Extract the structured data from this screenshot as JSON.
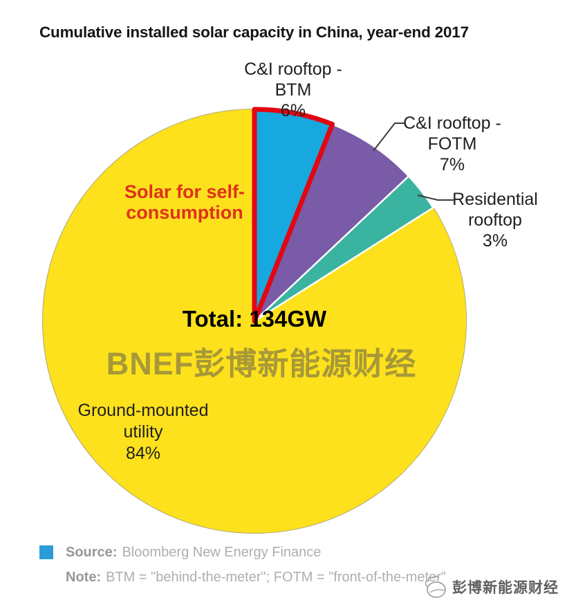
{
  "title": "Cumulative installed solar capacity in China, year-end 2017",
  "chart_data": {
    "type": "pie",
    "title": "Cumulative installed solar capacity in China, year-end 2017",
    "total_label": "Total: 134GW",
    "total_value_gw": 134,
    "start_angle_deg": 0,
    "direction": "clockwise",
    "slices": [
      {
        "label": "C&I rooftop - BTM",
        "pct": 6,
        "color": "#17a8e0",
        "display": "C&I rooftop -\nBTM\n6%"
      },
      {
        "label": "C&I rooftop - FOTM",
        "pct": 7,
        "color": "#7a5ba8",
        "display": "C&I rooftop -\nFOTM\n7%"
      },
      {
        "label": "Residential rooftop",
        "pct": 3,
        "color": "#3bb3a1",
        "display": "Residential\nrooftop\n3%"
      },
      {
        "label": "Ground-mounted utility",
        "pct": 84,
        "color": "#fce11c",
        "display": "Ground-mounted\nutility\n84%"
      }
    ],
    "annotation": {
      "text": "Solar for self-\nconsumption",
      "color": "#e1301c",
      "outline_color": "#e30613"
    },
    "watermark_center": "BNEF彭博新能源财经"
  },
  "footer": {
    "legend_color": "#2b9cd8",
    "source_label": "Source:",
    "source_text": "Bloomberg New Energy Finance",
    "note_label": "Note:",
    "note_text": "BTM = \"behind-the-meter\"; FOTM = \"front-of-the-meter\""
  },
  "corner_watermark": {
    "text": "彭博新能源财经",
    "icon": "sketch-globe-icon"
  }
}
